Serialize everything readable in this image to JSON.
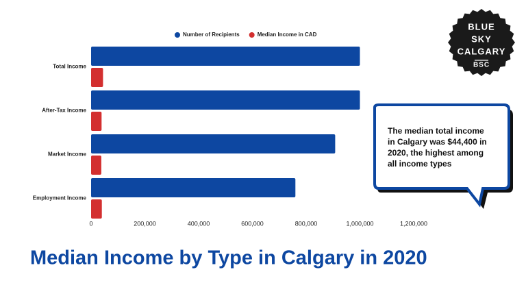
{
  "chart_data": {
    "type": "bar",
    "orientation": "horizontal",
    "title": "Median Income by Type in Calgary in 2020",
    "categories": [
      "Total Income",
      "After-Tax Income",
      "Market Income",
      "Employment Income"
    ],
    "series": [
      {
        "name": "Number of Recipients",
        "color": "#0d47a1",
        "values": [
          1000000,
          1000000,
          908000,
          760000
        ]
      },
      {
        "name": "Median Income in CAD",
        "color": "#d32f2f",
        "values": [
          44400,
          39000,
          38000,
          40000
        ]
      }
    ],
    "xlim": [
      0,
      1200000
    ],
    "xticks": [
      0,
      {
        "value": 200000,
        "label": "200,000"
      },
      {
        "value": 400000,
        "label": "400,000"
      },
      {
        "value": 600000,
        "label": "600,000"
      },
      {
        "value": 800000,
        "label": "800,000"
      },
      {
        "value": 1000000,
        "label": "1,000,000"
      },
      {
        "value": 1200000,
        "label": "1,200,000"
      }
    ],
    "grid": false,
    "legend": "top",
    "annotation": "The median total income in Calgary was $44,400 in 2020, the highest among all income types"
  },
  "logo": {
    "lines": [
      "BLUE",
      "SKY",
      "CALGARY",
      "BSC"
    ]
  }
}
